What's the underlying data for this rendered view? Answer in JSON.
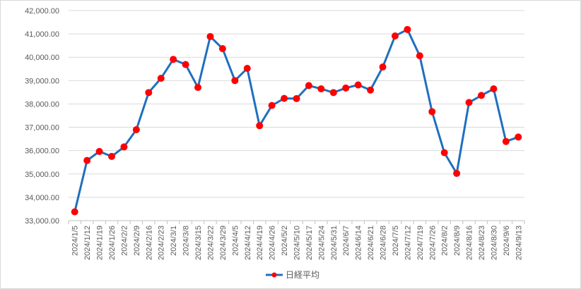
{
  "chart_data": {
    "type": "line",
    "categories": [
      "2024/1/5",
      "2024/1/12",
      "2024/1/19",
      "2024/1/26",
      "2024/2/2",
      "2024/2/9",
      "2024/2/16",
      "2024/2/23",
      "2024/3/1",
      "2024/3/8",
      "2024/3/15",
      "2024/3/22",
      "2024/3/29",
      "2024/4/5",
      "2024/4/12",
      "2024/4/19",
      "2024/4/26",
      "2024/5/2",
      "2024/5/10",
      "2024/5/17",
      "2024/5/24",
      "2024/5/31",
      "2024/6/7",
      "2024/6/14",
      "2024/6/21",
      "2024/6/28",
      "2024/7/5",
      "2024/7/12",
      "2024/7/19",
      "2024/7/26",
      "2024/8/2",
      "2024/8/9",
      "2024/8/16",
      "2024/8/23",
      "2024/8/30",
      "2024/9/6",
      "2024/9/13"
    ],
    "series": [
      {
        "name": "日経平均",
        "values": [
          33377,
          35577,
          35963,
          35751,
          36158,
          36897,
          38487,
          39098,
          39910,
          39688,
          38707,
          40888,
          40369,
          39000,
          39523,
          37068,
          37934,
          38236,
          38229,
          38787,
          38646,
          38487,
          38683,
          38814,
          38596,
          39583,
          40912,
          41190,
          40063,
          37667,
          35910,
          35025,
          38062,
          38364,
          38647,
          36391,
          36581
        ],
        "color": "#1f6fbf",
        "marker_color": "#ff0000"
      }
    ],
    "y_ticks": [
      "33,000.00",
      "34,000.00",
      "35,000.00",
      "36,000.00",
      "37,000.00",
      "38,000.00",
      "39,000.00",
      "40,000.00",
      "41,000.00",
      "42,000.00"
    ],
    "ylim": [
      33000,
      42000
    ],
    "grid": "horizontal",
    "legend": "bottom",
    "title": "",
    "xlabel": "",
    "ylabel": ""
  }
}
